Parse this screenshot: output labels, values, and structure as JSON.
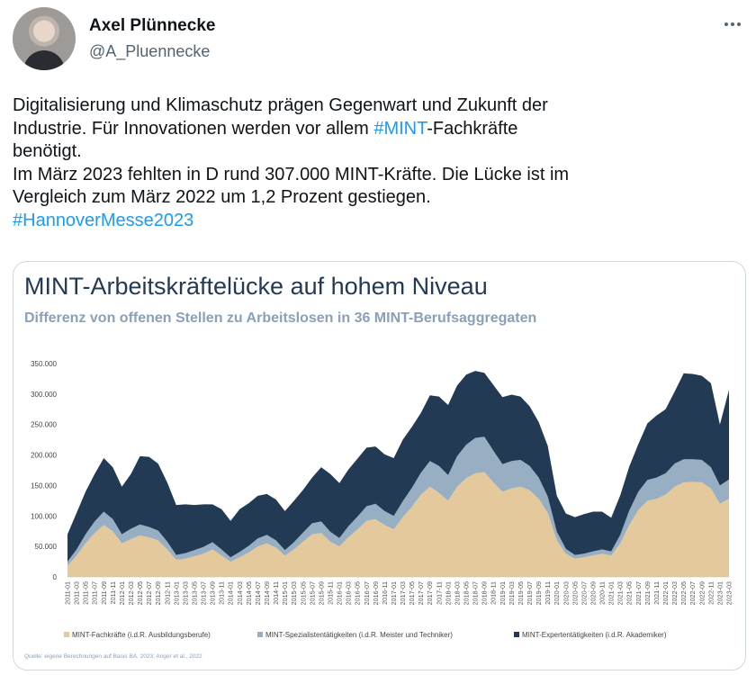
{
  "author": {
    "name": "Axel Plünnecke",
    "handle": "@A_Pluennecke"
  },
  "tweet": {
    "line1": "Digitalisierung und Klimaschutz prägen Gegenwart und Zukunft der",
    "line2_a": "Industrie. Für Innovationen werden vor allem ",
    "line2_tag": "#MINT",
    "line2_b": "-Fachkräfte",
    "line3": "benötigt.",
    "line4": "Im März 2023 fehlten in D rund 307.000 MINT-Kräfte. Die Lücke ist im",
    "line5": "Vergleich zum März 2022 um 1,2 Prozent gestiegen.",
    "hashtag2": "#HannoverMesse2023"
  },
  "chart_data": {
    "type": "area",
    "stacked": true,
    "title": "MINT-Arbeitskräftelücke auf hohem Niveau",
    "subtitle": "Differenz von offenen Stellen zu Arbeitslosen in 36 MINT-Berufsaggregaten",
    "source": "Quelle: eigene Berechnungen auf Basis BA, 2023; Anger et al., 2022",
    "ylim": [
      0,
      350000
    ],
    "yticks": [
      "0",
      "50.000",
      "100.000",
      "150.000",
      "200.000",
      "250.000",
      "300.000",
      "350.000"
    ],
    "grid": false,
    "legend_position": "bottom",
    "x_labels": [
      "2011-01",
      "2011-03",
      "2011-05",
      "2011-07",
      "2011-09",
      "2011-11",
      "2012-01",
      "2012-03",
      "2012-05",
      "2012-07",
      "2012-09",
      "2012-11",
      "2013-01",
      "2013-03",
      "2013-05",
      "2013-07",
      "2013-09",
      "2013-11",
      "2014-01",
      "2014-03",
      "2014-05",
      "2014-07",
      "2014-09",
      "2014-11",
      "2015-01",
      "2015-03",
      "2015-05",
      "2015-07",
      "2015-09",
      "2015-11",
      "2016-01",
      "2016-03",
      "2016-05",
      "2016-07",
      "2016-09",
      "2016-11",
      "2017-01",
      "2017-03",
      "2017-05",
      "2017-07",
      "2017-09",
      "2017-11",
      "2018-01",
      "2018-03",
      "2018-05",
      "2018-07",
      "2018-09",
      "2018-11",
      "2019-01",
      "2019-03",
      "2019-05",
      "2019-07",
      "2019-09",
      "2019-11",
      "2020-01",
      "2020-03",
      "2020-05",
      "2020-07",
      "2020-09",
      "2020-11",
      "2021-01",
      "2021-03",
      "2021-05",
      "2021-07",
      "2021-09",
      "2021-11",
      "2022-01",
      "2022-03",
      "2022-05",
      "2022-07",
      "2022-09",
      "2022-11",
      "2023-01",
      "2023-03"
    ],
    "series": [
      {
        "name": "MINT-Fachkräfte (i.d.R. Ausbildungsberufe)",
        "color": "#e3c99c",
        "values": [
          18000,
          35000,
          55000,
          72000,
          85000,
          75000,
          55000,
          62000,
          68000,
          65000,
          60000,
          45000,
          28000,
          30000,
          34000,
          38000,
          45000,
          35000,
          25000,
          32000,
          40000,
          50000,
          55000,
          48000,
          35000,
          45000,
          58000,
          70000,
          72000,
          58000,
          50000,
          65000,
          78000,
          92000,
          95000,
          85000,
          78000,
          98000,
          115000,
          135000,
          148000,
          138000,
          125000,
          148000,
          162000,
          170000,
          172000,
          155000,
          140000,
          145000,
          148000,
          142000,
          128000,
          105000,
          60000,
          38000,
          30000,
          32000,
          35000,
          38000,
          35000,
          55000,
          85000,
          110000,
          125000,
          128000,
          135000,
          148000,
          155000,
          156000,
          155000,
          145000,
          120000,
          128000
        ]
      },
      {
        "name": "MINT-Spezialistentätigkeiten (i.d.R. Meister und Techniker)",
        "color": "#98aec2",
        "values": [
          7000,
          10000,
          15000,
          19000,
          22000,
          20000,
          15000,
          17000,
          18000,
          17000,
          16000,
          13000,
          8000,
          9000,
          10000,
          11000,
          12000,
          10000,
          7000,
          9000,
          11000,
          13000,
          14000,
          12000,
          9000,
          12000,
          15000,
          18000,
          19000,
          16000,
          14000,
          18000,
          21000,
          24000,
          25000,
          23000,
          22000,
          26000,
          31000,
          36000,
          42000,
          44000,
          42000,
          50000,
          55000,
          58000,
          58000,
          52000,
          45000,
          45000,
          44000,
          40000,
          35000,
          27000,
          14000,
          8000,
          6000,
          6000,
          7000,
          7000,
          7000,
          14000,
          24000,
          30000,
          34000,
          35000,
          35000,
          38000,
          38000,
          37000,
          37000,
          35000,
          30000,
          32000
        ]
      },
      {
        "name": "MINT-Expertentätigkeiten (i.d.R. Akademiker)",
        "color": "#233a55",
        "values": [
          45000,
          60000,
          70000,
          78000,
          88000,
          85000,
          78000,
          90000,
          112000,
          115000,
          110000,
          97000,
          82000,
          80000,
          74000,
          70000,
          62000,
          66000,
          60000,
          70000,
          70000,
          70000,
          67000,
          67000,
          64000,
          68000,
          70000,
          75000,
          89000,
          95000,
          90000,
          93000,
          95000,
          96000,
          94000,
          93000,
          95000,
          101000,
          100000,
          98000,
          108000,
          114000,
          115000,
          116000,
          115000,
          110000,
          105000,
          108000,
          110000,
          109000,
          104000,
          98000,
          91000,
          83000,
          59000,
          58000,
          62000,
          65000,
          65000,
          62000,
          55000,
          65000,
          72000,
          78000,
          93000,
          102000,
          105000,
          118000,
          141000,
          140000,
          138000,
          138000,
          100000,
          147000
        ]
      }
    ]
  }
}
